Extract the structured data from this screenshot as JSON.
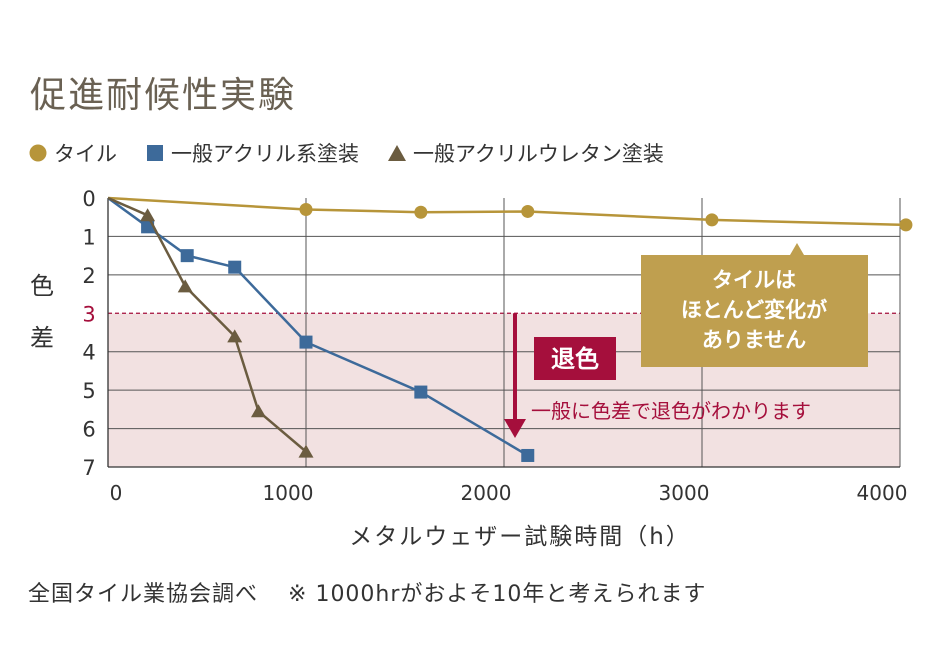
{
  "title": "促進耐候性実験",
  "colors": {
    "tile": "#b7953a",
    "acrylic": "#3d6a9a",
    "urethane": "#6b5c40",
    "discolor": "#a50f3c",
    "zone_fill": "#f2e1e1",
    "callout": "#bf9f4f",
    "grid": "#555555"
  },
  "legend": [
    {
      "marker": "circle",
      "label": "タイル"
    },
    {
      "marker": "square",
      "label": "一般アクリル系塗装"
    },
    {
      "marker": "triangle",
      "label": "一般アクリルウレタン塗装"
    }
  ],
  "chart_data": {
    "type": "line",
    "xlabel": "メタルウェザー試験時間（h）",
    "ylabel": "色差",
    "ylabel_chars": [
      "色",
      "差"
    ],
    "xlim": [
      0,
      4000
    ],
    "ylim": [
      0,
      7
    ],
    "y_inverted": true,
    "x_ticks": [
      0,
      1000,
      2000,
      3000,
      4000
    ],
    "x_tick_labels": [
      "0",
      "1000",
      "2000",
      "3000",
      "4000"
    ],
    "y_ticks": [
      0,
      1,
      2,
      3,
      4,
      5,
      6,
      7
    ],
    "y_tick_labels": [
      "0",
      "1",
      "2",
      "3",
      "4",
      "5",
      "6",
      "7"
    ],
    "threshold": 3,
    "series": [
      {
        "name": "タイル",
        "marker": "circle",
        "x": [
          0,
          1000,
          1580,
          2120,
          3050,
          4030
        ],
        "y": [
          0,
          0.3,
          0.37,
          0.35,
          0.57,
          0.7
        ]
      },
      {
        "name": "一般アクリル系塗装",
        "marker": "square",
        "x": [
          0,
          200,
          400,
          640,
          1000,
          1580,
          2120
        ],
        "y": [
          0,
          0.75,
          1.5,
          1.8,
          3.75,
          5.05,
          6.7
        ]
      },
      {
        "name": "一般アクリルウレタン塗装",
        "marker": "triangle",
        "x": [
          0,
          200,
          390,
          640,
          760,
          1000
        ],
        "y": [
          0,
          0.45,
          2.3,
          3.6,
          5.55,
          6.6
        ]
      }
    ],
    "annotations": {
      "callout_lines": [
        "タイルは",
        "ほとんど変化が",
        "ありません"
      ],
      "discolor_badge": "退色",
      "discolor_text": "一般に色差で退色がわかります"
    }
  },
  "note": {
    "source": "全国タイル業協会調べ",
    "remark": "※ 1000hrがおよそ10年と考えられます"
  }
}
